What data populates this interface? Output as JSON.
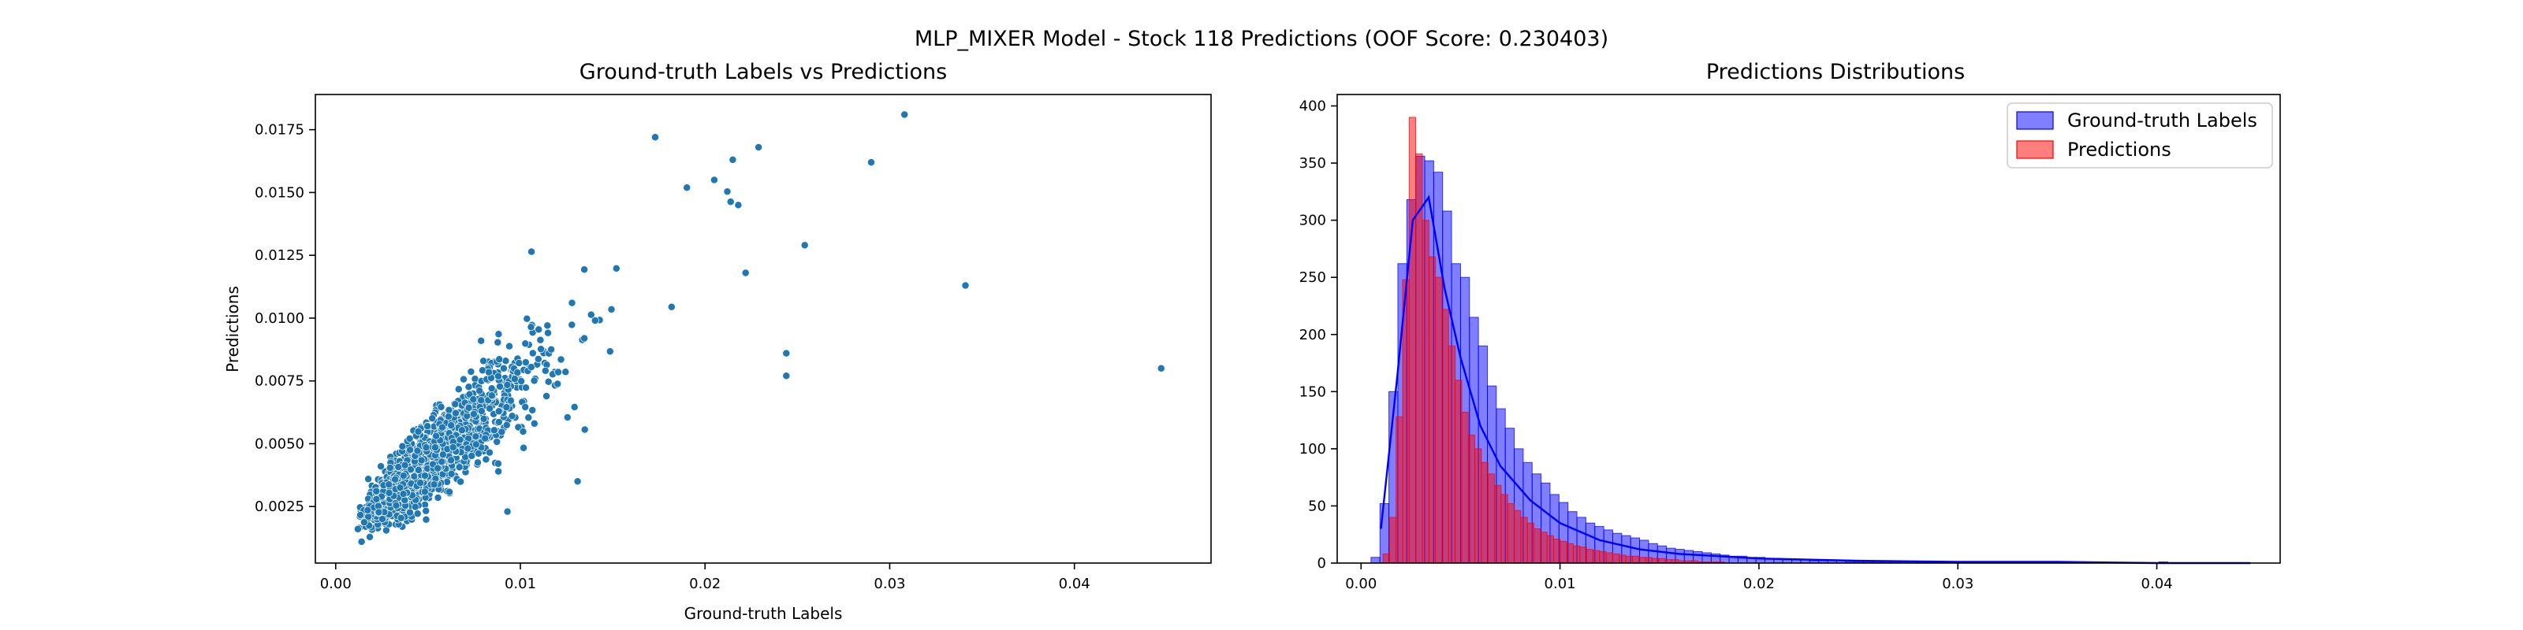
{
  "figure": {
    "suptitle": "MLP_MIXER Model - Stock 118 Predictions (OOF Score: 0.230403)"
  },
  "colors": {
    "scatter_fill": "#1f77b4",
    "scatter_edge": "#ffffff",
    "gt_hist": "#0000ff",
    "pred_hist": "#ff0000",
    "kde_line": "#0000ff",
    "axis": "#000000"
  },
  "chart_data": [
    {
      "type": "scatter",
      "title": "Ground-truth Labels vs Predictions",
      "xlabel": "Ground-truth Labels",
      "ylabel": "Predictions",
      "xlim": [
        -0.0011,
        0.0474
      ],
      "ylim": [
        0.00025,
        0.0189
      ],
      "xticks": [
        0.0,
        0.01,
        0.02,
        0.03,
        0.04
      ],
      "xtick_labels": [
        "0.00",
        "0.01",
        "0.02",
        "0.03",
        "0.04"
      ],
      "yticks": [
        0.0025,
        0.005,
        0.0075,
        0.01,
        0.0125,
        0.015,
        0.0175
      ],
      "ytick_labels": [
        "0.0025",
        "0.0050",
        "0.0075",
        "0.0100",
        "0.0125",
        "0.0150",
        "0.0175"
      ],
      "grid": false,
      "highlighted_points": [
        {
          "x": 0.0308,
          "y": 0.0181
        },
        {
          "x": 0.0229,
          "y": 0.0168
        },
        {
          "x": 0.029,
          "y": 0.0162
        },
        {
          "x": 0.0215,
          "y": 0.0163
        },
        {
          "x": 0.0205,
          "y": 0.0155
        },
        {
          "x": 0.0341,
          "y": 0.0113
        },
        {
          "x": 0.0254,
          "y": 0.0129
        },
        {
          "x": 0.0244,
          "y": 0.0086
        },
        {
          "x": 0.0244,
          "y": 0.0077
        },
        {
          "x": 0.0447,
          "y": 0.008
        },
        {
          "x": 0.0173,
          "y": 0.0172
        },
        {
          "x": 0.0218,
          "y": 0.0145
        },
        {
          "x": 0.0222,
          "y": 0.0118
        },
        {
          "x": 0.0131,
          "y": 0.0035
        },
        {
          "x": 0.0093,
          "y": 0.0023
        },
        {
          "x": 0.0014,
          "y": 0.0011
        },
        {
          "x": 0.0012,
          "y": 0.0016
        }
      ],
      "point_cloud": {
        "count": 1750,
        "x_range": [
          0.001,
          0.0215
        ],
        "y_range": [
          0.001,
          0.016
        ],
        "trend_slope": 0.62,
        "trend_intercept": 0.0012
      }
    },
    {
      "type": "histogram",
      "title": "Predictions Distributions",
      "xlabel": "",
      "ylabel": "",
      "xlim": [
        -0.0012,
        0.0462
      ],
      "ylim": [
        0,
        410
      ],
      "xticks": [
        0.0,
        0.01,
        0.02,
        0.03,
        0.04
      ],
      "xtick_labels": [
        "0.00",
        "0.01",
        "0.02",
        "0.03",
        "0.04"
      ],
      "yticks": [
        0,
        50,
        100,
        150,
        200,
        250,
        300,
        350,
        400
      ],
      "ytick_labels": [
        "0",
        "50",
        "100",
        "150",
        "200",
        "250",
        "300",
        "350",
        "400"
      ],
      "grid": false,
      "legend_position": "top-right",
      "series": [
        {
          "name": "Ground-truth Labels",
          "bin_start": 0.0005,
          "bin_width": 0.00045,
          "counts": [
            5,
            52,
            150,
            262,
            318,
            356,
            352,
            342,
            308,
            262,
            250,
            215,
            190,
            155,
            135,
            118,
            100,
            88,
            78,
            70,
            60,
            53,
            45,
            40,
            35,
            32,
            29,
            26,
            24,
            22,
            20,
            17,
            15,
            13,
            12,
            11,
            10,
            9,
            8,
            7,
            6,
            6,
            5,
            5,
            4,
            4,
            3,
            3,
            3,
            2,
            2,
            2,
            2,
            1,
            1,
            1,
            1,
            1,
            1,
            1,
            1,
            1,
            1,
            1,
            0,
            1,
            1,
            0,
            1,
            0,
            1,
            1,
            0,
            0,
            1,
            0,
            0,
            0,
            0,
            0,
            0,
            0,
            0,
            0,
            0,
            0,
            0,
            0,
            1
          ]
        },
        {
          "name": "Predictions",
          "bin_start": 0.0011,
          "bin_width": 0.00033,
          "counts": [
            8,
            40,
            128,
            248,
            390,
            358,
            300,
            268,
            250,
            222,
            190,
            160,
            132,
            112,
            100,
            88,
            78,
            68,
            60,
            52,
            46,
            40,
            35,
            30,
            27,
            24,
            21,
            19,
            17,
            15,
            14,
            12,
            11,
            10,
            9,
            8,
            7,
            6,
            6,
            5,
            5,
            4,
            4,
            3,
            3,
            2,
            2,
            2,
            1,
            1,
            1,
            1
          ]
        }
      ],
      "kde": {
        "x": [
          0.001,
          0.0018,
          0.0026,
          0.0034,
          0.0042,
          0.005,
          0.006,
          0.007,
          0.0085,
          0.01,
          0.012,
          0.014,
          0.016,
          0.018,
          0.02,
          0.025,
          0.03,
          0.035,
          0.04,
          0.0447
        ],
        "y": [
          30,
          160,
          300,
          320,
          240,
          180,
          120,
          85,
          55,
          35,
          20,
          12,
          8,
          6,
          4,
          2,
          1,
          1,
          0,
          0
        ]
      }
    }
  ]
}
